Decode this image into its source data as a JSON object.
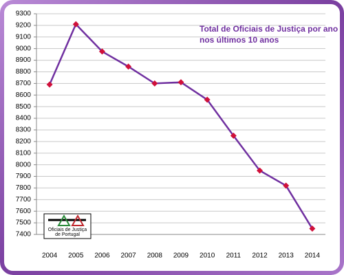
{
  "chart_data": {
    "type": "line",
    "title": [
      "Total de Oficiais de Justiça por ano",
      "nos últimos 10 anos"
    ],
    "categories": [
      "2004",
      "2005",
      "2006",
      "2007",
      "2008",
      "2009",
      "2010",
      "2011",
      "2012",
      "2013",
      "2014"
    ],
    "series": [
      {
        "color": "#7030a0",
        "marker_color": "#d0103a",
        "values": [
          8690,
          9210,
          8975,
          8845,
          8700,
          8710,
          8560,
          8250,
          7950,
          7820,
          7450
        ]
      }
    ],
    "ylim": [
      7400,
      9300
    ],
    "yticks": [
      7400,
      7500,
      7600,
      7700,
      7800,
      7900,
      8000,
      8100,
      8200,
      8300,
      8400,
      8500,
      8600,
      8700,
      8800,
      8900,
      9000,
      9100,
      9200,
      9300
    ],
    "grid": true,
    "logo": [
      "Oficiais de Justiça",
      "de Portugal"
    ]
  }
}
